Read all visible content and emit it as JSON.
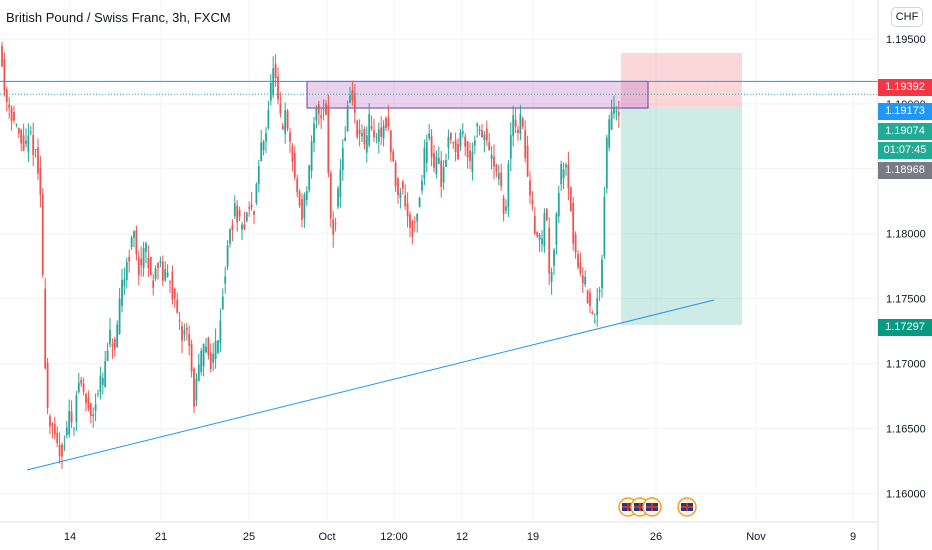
{
  "header": {
    "title": "British Pound / Swiss Franc, 3h, FXCM",
    "currency_button": "CHF"
  },
  "price_tags": [
    {
      "value": "1.19392",
      "color": "#f23645"
    },
    {
      "value": "1.19173",
      "color": "#2196f3"
    },
    {
      "value": "1.19074",
      "color": "#22ab94"
    },
    {
      "value": "01:07:45",
      "color": "#22ab94"
    },
    {
      "value": "1.18968",
      "color": "#787b86"
    },
    {
      "value": "1.17297",
      "color": "#089981"
    }
  ],
  "chart_data": {
    "type": "candlestick",
    "symbol": "British Pound / Swiss Franc",
    "interval": "3h",
    "source": "FXCM",
    "ylim": [
      1.1578,
      1.198
    ],
    "y_ticks": [
      "1.19500",
      "1.19000",
      "1.18500",
      "1.18000",
      "1.17500",
      "1.17000",
      "1.16500",
      "1.16000"
    ],
    "x_ticks": [
      "14",
      "21",
      "25",
      "Oct",
      "12:00",
      "12",
      "19",
      "26",
      "Nov",
      "9"
    ],
    "price_path": [
      [
        0,
        1.1975
      ],
      [
        3,
        1.194
      ],
      [
        7,
        1.191
      ],
      [
        13,
        1.1895
      ],
      [
        19,
        1.188
      ],
      [
        23,
        1.187
      ],
      [
        27,
        1.1865
      ],
      [
        33,
        1.1875
      ],
      [
        38,
        1.186
      ],
      [
        43,
        1.183
      ],
      [
        46,
        1.174
      ],
      [
        49,
        1.167
      ],
      [
        53,
        1.165
      ],
      [
        58,
        1.164
      ],
      [
        63,
        1.163
      ],
      [
        67,
        1.164
      ],
      [
        71,
        1.166
      ],
      [
        76,
        1.1655
      ],
      [
        82,
        1.169
      ],
      [
        88,
        1.167
      ],
      [
        94,
        1.166
      ],
      [
        100,
        1.168
      ],
      [
        106,
        1.169
      ],
      [
        112,
        1.172
      ],
      [
        118,
        1.171
      ],
      [
        124,
        1.176
      ],
      [
        130,
        1.178
      ],
      [
        136,
        1.18
      ],
      [
        142,
        1.177
      ],
      [
        148,
        1.179
      ],
      [
        154,
        1.176
      ],
      [
        160,
        1.178
      ],
      [
        166,
        1.1765
      ],
      [
        172,
        1.177
      ],
      [
        178,
        1.174
      ],
      [
        184,
        1.172
      ],
      [
        190,
        1.173
      ],
      [
        196,
        1.167
      ],
      [
        202,
        1.17
      ],
      [
        208,
        1.1715
      ],
      [
        214,
        1.17
      ],
      [
        220,
        1.172
      ],
      [
        226,
        1.176
      ],
      [
        232,
        1.18
      ],
      [
        238,
        1.182
      ],
      [
        244,
        1.18
      ],
      [
        250,
        1.182
      ],
      [
        256,
        1.1815
      ],
      [
        262,
        1.186
      ],
      [
        268,
        1.188
      ],
      [
        272,
        1.1905
      ],
      [
        276,
        1.193
      ],
      [
        280,
        1.19
      ],
      [
        284,
        1.188
      ],
      [
        288,
        1.189
      ],
      [
        292,
        1.187
      ],
      [
        296,
        1.185
      ],
      [
        300,
        1.183
      ],
      [
        304,
        1.1815
      ],
      [
        308,
        1.183
      ],
      [
        312,
        1.185
      ],
      [
        316,
        1.188
      ],
      [
        320,
        1.19
      ],
      [
        324,
        1.189
      ],
      [
        328,
        1.1905
      ],
      [
        332,
        1.182
      ],
      [
        336,
        1.18
      ],
      [
        340,
        1.183
      ],
      [
        344,
        1.186
      ],
      [
        348,
        1.188
      ],
      [
        352,
        1.191
      ],
      [
        356,
        1.19
      ],
      [
        360,
        1.187
      ],
      [
        364,
        1.188
      ],
      [
        368,
        1.186
      ],
      [
        372,
        1.189
      ],
      [
        376,
        1.187
      ],
      [
        380,
        1.188
      ],
      [
        384,
        1.1875
      ],
      [
        388,
        1.189
      ],
      [
        392,
        1.187
      ],
      [
        396,
        1.185
      ],
      [
        400,
        1.183
      ],
      [
        404,
        1.184
      ],
      [
        408,
        1.182
      ],
      [
        412,
        1.181
      ],
      [
        416,
        1.18
      ],
      [
        420,
        1.182
      ],
      [
        424,
        1.184
      ],
      [
        428,
        1.187
      ],
      [
        432,
        1.188
      ],
      [
        436,
        1.185
      ],
      [
        440,
        1.186
      ],
      [
        444,
        1.184
      ],
      [
        448,
        1.186
      ],
      [
        452,
        1.188
      ],
      [
        456,
        1.187
      ],
      [
        460,
        1.186
      ],
      [
        464,
        1.188
      ],
      [
        468,
        1.187
      ],
      [
        472,
        1.185
      ],
      [
        476,
        1.1875
      ],
      [
        480,
        1.188
      ],
      [
        484,
        1.187
      ],
      [
        488,
        1.188
      ],
      [
        492,
        1.186
      ],
      [
        496,
        1.185
      ],
      [
        500,
        1.1845
      ],
      [
        504,
        1.183
      ],
      [
        508,
        1.181
      ],
      [
        512,
        1.187
      ],
      [
        516,
        1.189
      ],
      [
        520,
        1.188
      ],
      [
        524,
        1.189
      ],
      [
        528,
        1.186
      ],
      [
        532,
        1.183
      ],
      [
        536,
        1.181
      ],
      [
        540,
        1.18
      ],
      [
        544,
        1.179
      ],
      [
        548,
        1.183
      ],
      [
        552,
        1.176
      ],
      [
        556,
        1.179
      ],
      [
        560,
        1.183
      ],
      [
        564,
        1.185
      ],
      [
        568,
        1.186
      ],
      [
        572,
        1.183
      ],
      [
        576,
        1.179
      ],
      [
        580,
        1.178
      ],
      [
        584,
        1.177
      ],
      [
        588,
        1.176
      ],
      [
        592,
        1.174
      ],
      [
        596,
        1.173
      ],
      [
        600,
        1.175
      ],
      [
        604,
        1.177
      ],
      [
        608,
        1.186
      ],
      [
        612,
        1.189
      ],
      [
        616,
        1.19
      ],
      [
        620,
        1.1897
      ]
    ]
  }
}
